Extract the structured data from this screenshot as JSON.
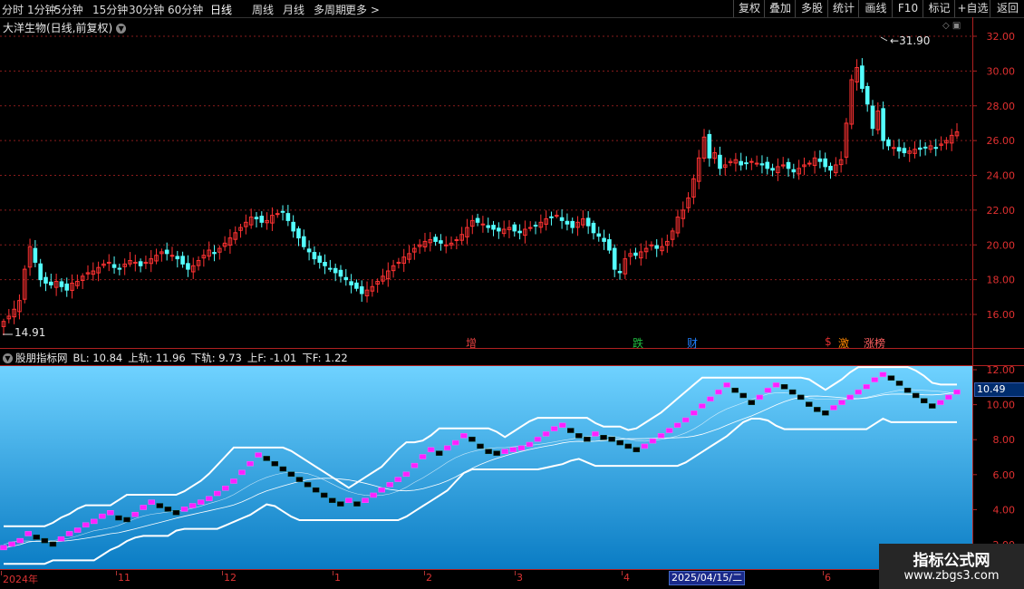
{
  "toolbar": {
    "periods": [
      "分时",
      "1分钟",
      "5分钟",
      "15分钟",
      "30分钟",
      "60分钟",
      "日线",
      "周线",
      "月线",
      "多周期",
      "更多 >"
    ],
    "active": "日线",
    "right_buttons": [
      "复权",
      "叠加",
      "多股",
      "统计",
      "画线",
      "F10",
      "标记",
      "+自选",
      "返回"
    ]
  },
  "stock": {
    "title": "大洋生物(日线,前复权)"
  },
  "price_axis": {
    "labels": [
      "32.00",
      "30.00",
      "28.00",
      "26.00",
      "24.00",
      "22.00",
      "20.00",
      "18.00",
      "16.00"
    ]
  },
  "annotations": {
    "high": "31.90",
    "low": "14.91"
  },
  "events": [
    {
      "label": "增",
      "color": "#e04040"
    },
    {
      "label": "跌",
      "color": "#20c040"
    },
    {
      "label": "财",
      "color": "#2080ff"
    },
    {
      "label": "$",
      "color": "#e03030"
    },
    {
      "label": "激",
      "color": "#ff8800"
    },
    {
      "label": "涨榜",
      "color": "#ff6060"
    }
  ],
  "indicator": {
    "name": "股朋指标网",
    "values": [
      "BL: 10.84",
      "上轨: 11.96",
      "下轨: 9.73",
      "上F: -1.01",
      "下F: 1.22"
    ],
    "axis_labels": [
      "12.00",
      "10.00",
      "8.00",
      "6.00",
      "4.00",
      "2.00"
    ],
    "current": "10.49"
  },
  "x_axis": {
    "labels": [
      "2024年",
      "11",
      "12",
      "1",
      "2",
      "3",
      "4",
      "5",
      "6"
    ],
    "cursor_date": "2025/04/15/二"
  },
  "watermark": {
    "line1": "指标公式网",
    "line2": "www.zbgs3.com"
  },
  "colors": {
    "up": "#ff3232",
    "down": "#54ffff",
    "grid": "#8a1c1c",
    "border": "#b02020",
    "magenta": "#ff20ff"
  },
  "chart_data": {
    "type": "candlestick",
    "ylim": [
      14,
      33
    ],
    "close": [
      15.6,
      15.9,
      16.3,
      16.8,
      18.6,
      19.9,
      19.0,
      18.0,
      17.8,
      17.7,
      17.9,
      17.6,
      17.4,
      17.8,
      17.9,
      18.2,
      18.4,
      18.5,
      18.7,
      18.9,
      19.0,
      18.7,
      18.6,
      18.9,
      19.1,
      19.0,
      18.8,
      19.0,
      19.2,
      19.4,
      19.6,
      19.5,
      19.4,
      19.2,
      18.9,
      18.6,
      18.8,
      19.1,
      19.4,
      19.7,
      19.5,
      19.8,
      20.1,
      20.4,
      20.7,
      21.0,
      21.3,
      21.6,
      21.5,
      21.3,
      21.4,
      21.7,
      21.8,
      21.9,
      21.4,
      20.8,
      20.4,
      19.9,
      19.6,
      19.2,
      19.0,
      18.8,
      18.6,
      18.4,
      18.2,
      18.0,
      17.7,
      17.5,
      17.2,
      17.4,
      17.6,
      17.9,
      18.2,
      18.5,
      18.8,
      19.0,
      19.3,
      19.5,
      19.8,
      20.0,
      20.2,
      20.3,
      20.2,
      20.1,
      20.0,
      20.1,
      20.3,
      20.6,
      21.0,
      21.4,
      21.3,
      21.2,
      21.0,
      20.9,
      20.8,
      20.9,
      21.0,
      20.8,
      20.7,
      20.9,
      21.0,
      21.1,
      21.3,
      21.5,
      21.6,
      21.7,
      21.4,
      21.2,
      21.0,
      21.3,
      21.5,
      21.1,
      20.7,
      20.5,
      20.2,
      19.7,
      18.6,
      18.4,
      19.2,
      19.5,
      19.4,
      19.6,
      19.8,
      20.0,
      19.8,
      19.9,
      20.2,
      20.8,
      21.6,
      22.0,
      22.7,
      23.8,
      25.0,
      26.2,
      25.0,
      25.3,
      24.4,
      24.6,
      24.8,
      24.9,
      24.6,
      24.7,
      24.8,
      24.7,
      24.6,
      24.4,
      24.3,
      24.5,
      24.6,
      24.4,
      24.2,
      24.4,
      24.6,
      24.7,
      25.0,
      24.8,
      24.5,
      24.3,
      24.6,
      24.9,
      27.0,
      29.5,
      30.2,
      29.0,
      28.1,
      26.7,
      27.7,
      26.0,
      25.7,
      25.6,
      25.4,
      25.3,
      25.4,
      25.5,
      25.5,
      25.6,
      25.7,
      25.6,
      25.8,
      26.0,
      26.3,
      26.5
    ],
    "indicator_series": {
      "line": [
        1.8,
        2.0,
        2.2,
        2.6,
        2.4,
        2.2,
        2.0,
        2.3,
        2.6,
        2.8,
        3.1,
        3.3,
        3.6,
        3.8,
        3.5,
        3.4,
        3.7,
        4.1,
        4.4,
        4.2,
        4.0,
        3.8,
        4.0,
        4.2,
        4.4,
        4.6,
        4.9,
        5.2,
        5.6,
        6.1,
        6.6,
        7.1,
        6.9,
        6.6,
        6.3,
        6.0,
        5.7,
        5.4,
        5.1,
        4.8,
        4.5,
        4.3,
        4.5,
        4.3,
        4.5,
        4.8,
        5.1,
        5.4,
        5.7,
        6.0,
        6.5,
        7.0,
        7.4,
        7.2,
        7.5,
        7.8,
        8.2,
        8.0,
        7.6,
        7.3,
        7.2,
        7.3,
        7.4,
        7.5,
        7.7,
        8.0,
        8.3,
        8.6,
        8.8,
        8.5,
        8.2,
        8.0,
        8.3,
        8.1,
        8.0,
        7.8,
        7.6,
        7.4,
        7.6,
        7.9,
        8.2,
        8.5,
        8.8,
        9.1,
        9.5,
        9.9,
        10.3,
        10.7,
        11.1,
        10.8,
        10.5,
        10.1,
        10.4,
        10.8,
        11.1,
        11.0,
        10.7,
        10.4,
        10.0,
        9.7,
        9.5,
        9.8,
        10.1,
        10.4,
        10.7,
        11.0,
        11.4,
        11.7,
        11.5,
        11.2,
        10.8,
        10.5,
        10.2,
        9.9,
        10.1,
        10.4,
        10.7
      ]
    }
  }
}
